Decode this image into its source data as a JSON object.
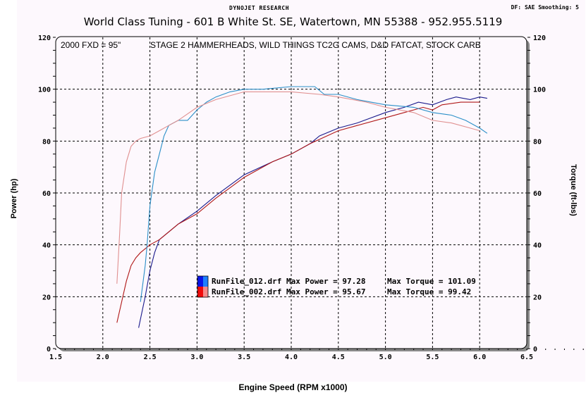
{
  "header": {
    "brand": "DYNOJET RESEARCH",
    "settings": "DF: SAE  Smoothing: 5",
    "title": "World Class Tuning - 601 B White St. SE, Watertown, MN 55388 - 952.955.5119"
  },
  "chart_data": {
    "type": "line",
    "title": "World Class Tuning - 601 B White St. SE, Watertown, MN 55388 - 952.955.5119",
    "subtitle_left": "2000 FXD = 95\"",
    "subtitle_right": "STAGE 2 HAMMERHEADS, WILD THINGS TC2G CAMS, D&D FATCAT, STOCK CARB",
    "xlabel": "Engine Speed (RPM x1000)",
    "ylabel": "Power (hp)",
    "ylabel_right": "Torque (ft-lbs)",
    "xlim": [
      1.5,
      6.5
    ],
    "ylim": [
      0,
      120
    ],
    "ylim_right": [
      0,
      120
    ],
    "x_ticks": [
      "1.5",
      "2.0",
      "2.5",
      "3.0",
      "3.5",
      "4.0",
      "4.5",
      "5.0",
      "5.5",
      "6.0",
      "6.5"
    ],
    "y_ticks": [
      "0",
      "20",
      "40",
      "60",
      "80",
      "100",
      "120"
    ],
    "grid": true,
    "legend_position": "center-lower",
    "series": [
      {
        "name": "RunFile_012.drf Power",
        "axis": "left",
        "color": "#1a1a8c",
        "x": [
          2.38,
          2.45,
          2.5,
          2.55,
          2.6,
          2.7,
          2.8,
          3.0,
          3.2,
          3.5,
          3.8,
          4.0,
          4.2,
          4.3,
          4.5,
          4.7,
          5.0,
          5.2,
          5.35,
          5.5,
          5.65,
          5.75,
          5.9,
          6.0,
          6.08
        ],
        "y": [
          8,
          20,
          30,
          37,
          42,
          45,
          48,
          53,
          59,
          67,
          72,
          75,
          79,
          82,
          85,
          87,
          91,
          93,
          95,
          94,
          96,
          97,
          96,
          97,
          96.5
        ]
      },
      {
        "name": "RunFile_002.drf Power",
        "axis": "left",
        "color": "#b01818",
        "x": [
          2.15,
          2.2,
          2.25,
          2.3,
          2.35,
          2.4,
          2.5,
          2.6,
          2.7,
          2.8,
          3.0,
          3.2,
          3.5,
          3.8,
          4.0,
          4.2,
          4.5,
          4.7,
          5.0,
          5.2,
          5.4,
          5.5,
          5.6,
          5.8,
          6.0
        ],
        "y": [
          10,
          18,
          26,
          32,
          35,
          37,
          40,
          42,
          45,
          48,
          52,
          58,
          66,
          72,
          75,
          79,
          84,
          86,
          89,
          91,
          93,
          92,
          94,
          95,
          95
        ]
      },
      {
        "name": "RunFile_012.drf Torque",
        "axis": "right",
        "color": "#2a8fc8",
        "x": [
          2.4,
          2.45,
          2.47,
          2.5,
          2.55,
          2.6,
          2.65,
          2.7,
          2.8,
          2.9,
          3.0,
          3.1,
          3.2,
          3.35,
          3.5,
          3.7,
          4.0,
          4.25,
          4.35,
          4.5,
          4.7,
          5.0,
          5.3,
          5.5,
          5.7,
          5.85,
          6.0,
          6.08
        ],
        "y": [
          18,
          32,
          40,
          55,
          68,
          75,
          82,
          86,
          88,
          88,
          92,
          95,
          97,
          99,
          100,
          100,
          101,
          101,
          98,
          98,
          96,
          94,
          93,
          91,
          90,
          88,
          85,
          83
        ]
      },
      {
        "name": "RunFile_002.drf Torque",
        "axis": "right",
        "color": "#e09090",
        "x": [
          2.15,
          2.18,
          2.2,
          2.25,
          2.3,
          2.35,
          2.4,
          2.5,
          2.6,
          2.7,
          2.8,
          3.0,
          3.2,
          3.5,
          3.8,
          4.0,
          4.3,
          4.5,
          4.8,
          5.0,
          5.3,
          5.5,
          5.7,
          5.9,
          6.0
        ],
        "y": [
          25,
          45,
          60,
          72,
          78,
          80,
          81,
          82,
          84,
          86,
          88,
          93,
          96,
          99,
          99,
          99,
          98,
          97,
          95,
          93,
          91,
          88,
          87,
          85,
          84
        ]
      }
    ],
    "legend": [
      {
        "label": "RunFile_012.drf Max Power = 97.28",
        "torque": "Max Torque = 101.09",
        "swatch_dark": "#0a14e6",
        "swatch_light": "#1e7fff"
      },
      {
        "label": "RunFile_002.drf Max Power = 95.67",
        "torque": "Max Torque = 99.42",
        "swatch_dark": "#f00a0a",
        "swatch_light": "#f58a8a"
      }
    ]
  }
}
